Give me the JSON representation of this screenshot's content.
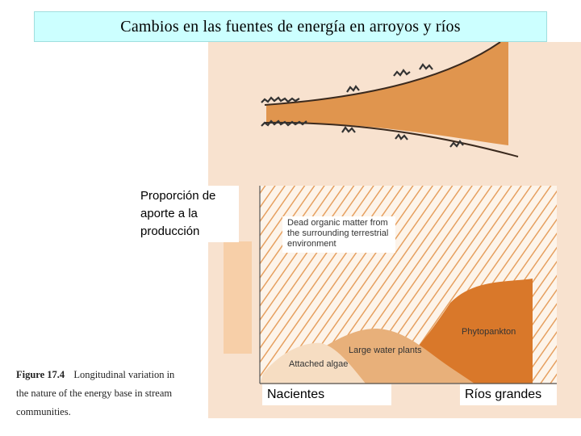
{
  "title": "Cambios en las fuentes de energía en arroyos y ríos",
  "y_label_lines": [
    "Proporción de",
    "aporte a la",
    "producción"
  ],
  "x_label_left": "Nacientes",
  "x_label_right": "Ríos grandes",
  "regions": {
    "dead_organic": "Dead organic matter from the surrounding terrestrial environment",
    "phytoplankton": "Phytopankton",
    "large_water_plants": "Large water plants",
    "attached_algae": "Attached algae"
  },
  "caption": {
    "figure": "Figure 17.4",
    "lines": [
      "Longitudinal variation in",
      "the nature of the energy base in stream",
      "communities."
    ]
  },
  "colors": {
    "title_bg": "#ccffff",
    "stream": "#e0954e",
    "hatch": "#e6a060",
    "phytoplankton": "#d9782a",
    "large_plants": "#e8b07a",
    "algae": "#f6ddc2"
  }
}
